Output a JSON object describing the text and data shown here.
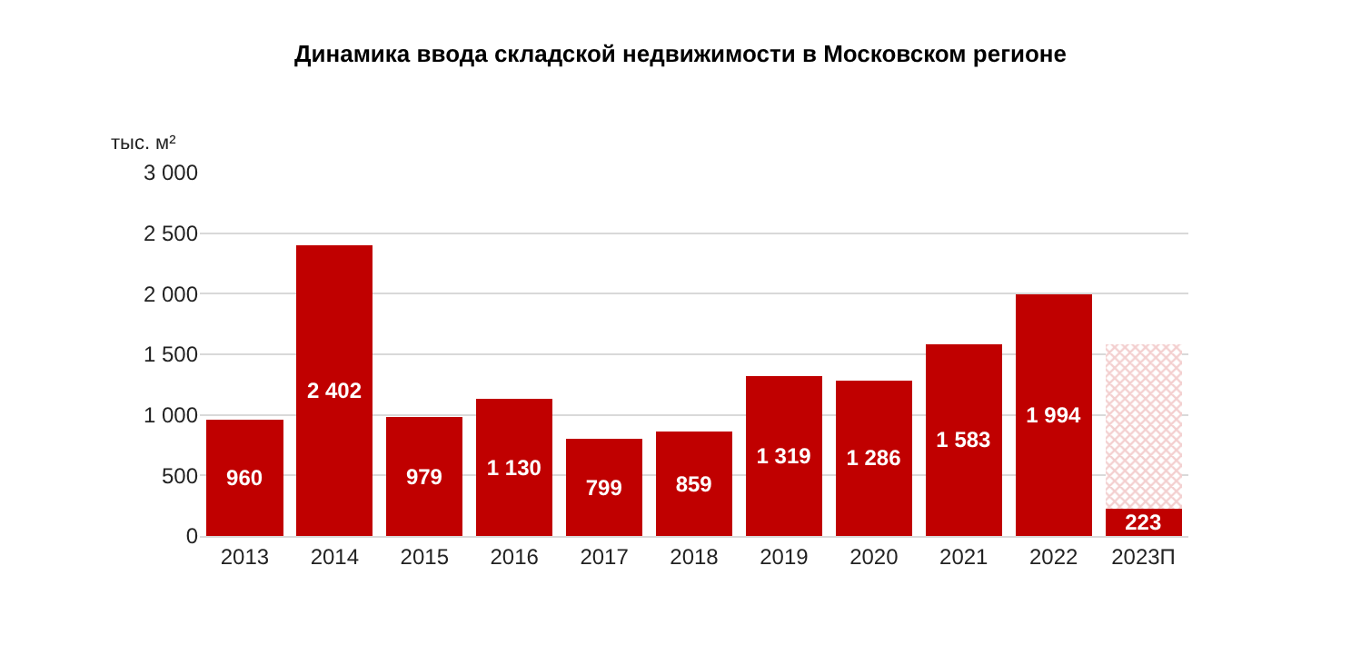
{
  "chart_data": {
    "type": "bar",
    "title": "Динамика ввода складской недвижимости в Московском регионе",
    "ylabel": "тыс. м²",
    "categories": [
      "2013",
      "2014",
      "2015",
      "2016",
      "2017",
      "2018",
      "2019",
      "2020",
      "2021",
      "2022",
      "2023П"
    ],
    "stacked": true,
    "series": [
      {
        "color": "#c00000",
        "values": [
          960,
          2402,
          979,
          1130,
          799,
          859,
          1319,
          1286,
          1583,
          1994,
          223
        ],
        "value_labels": [
          "960",
          "2 402",
          "979",
          "1 130",
          "799",
          "859",
          "1 319",
          "1 286",
          "1 583",
          "1 994",
          "223"
        ]
      },
      {
        "color": "#e8a0a0",
        "values": [
          null,
          null,
          null,
          null,
          null,
          null,
          null,
          null,
          null,
          null,
          1360
        ]
      }
    ],
    "ylim": [
      0,
      3000
    ],
    "yticks": [
      0,
      500,
      {
        "value": 1000,
        "label": "1 000"
      },
      {
        "value": 1500,
        "label": "1 500"
      },
      {
        "value": 2000,
        "label": "2 000"
      },
      {
        "value": 2500,
        "label": "2 500"
      },
      {
        "value": 3000,
        "label": "3 000"
      }
    ],
    "grid": "y"
  }
}
